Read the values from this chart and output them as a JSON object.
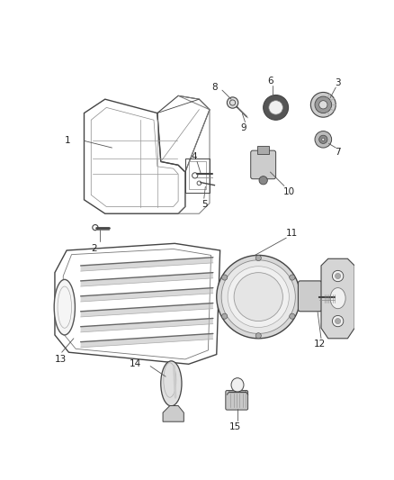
{
  "bg_color": "#ffffff",
  "line_color": "#444444",
  "text_color": "#222222",
  "font_size": 7.5,
  "fig_w": 4.38,
  "fig_h": 5.33,
  "dpi": 100
}
